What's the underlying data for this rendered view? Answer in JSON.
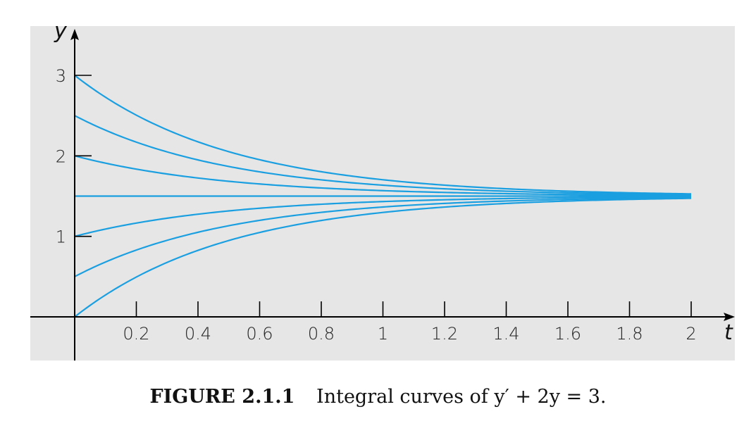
{
  "chart_data": {
    "type": "line",
    "xlabel": "t",
    "ylabel": "y",
    "xlim": [
      0,
      2
    ],
    "ylim": [
      0,
      3
    ],
    "x_ticks": [
      "0.2",
      "0.4",
      "0.6",
      "0.8",
      "1",
      "1.2",
      "1.4",
      "1.6",
      "1.8",
      "2"
    ],
    "y_ticks": [
      "1",
      "2",
      "3"
    ],
    "equation": "y = 1.5 + (y0 - 1.5)·e^(-2t)",
    "initial_values": [
      3,
      2.5,
      2,
      1.5,
      1,
      0.5,
      0
    ],
    "series_color": "#1a9fe0",
    "grid": false
  },
  "caption": {
    "label": "FIGURE 2.1.1",
    "text": "Integral curves of y′ + 2y = 3."
  }
}
